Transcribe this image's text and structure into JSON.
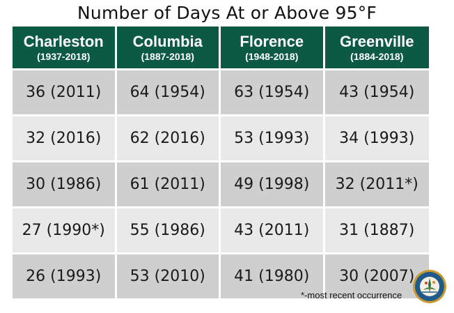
{
  "title": "Number of Days At or Above 95°F",
  "colors": {
    "header_bg": "#0d5a44",
    "header_text": "#ffffff",
    "row_dark": "#cfcfcf",
    "row_light": "#e9e9e9"
  },
  "columns": [
    {
      "city": "Charleston",
      "years": "(1937-2018)"
    },
    {
      "city": "Columbia",
      "years": "(1887-2018)"
    },
    {
      "city": "Florence",
      "years": "(1948-2018)"
    },
    {
      "city": "Greenville",
      "years": "(1884-2018)"
    }
  ],
  "rows": [
    [
      "36 (2011)",
      "64 (1954)",
      "63 (1954)",
      "43 (1954)"
    ],
    [
      "32 (2016)",
      "62 (2016)",
      "53 (1993)",
      "34 (1993)"
    ],
    [
      "30 (1986)",
      "61 (2011)",
      "49 (1998)",
      "32 (2011*)"
    ],
    [
      "27 (1990*)",
      "55 (1986)",
      "43 (2011)",
      "31 (1887)"
    ],
    [
      "26 (1993)",
      "53 (2010)",
      "41 (1980)",
      "30 (2007)"
    ]
  ],
  "footnote": "*-most recent occurrence",
  "logo": {
    "icon": "state-agency-seal-icon"
  }
}
